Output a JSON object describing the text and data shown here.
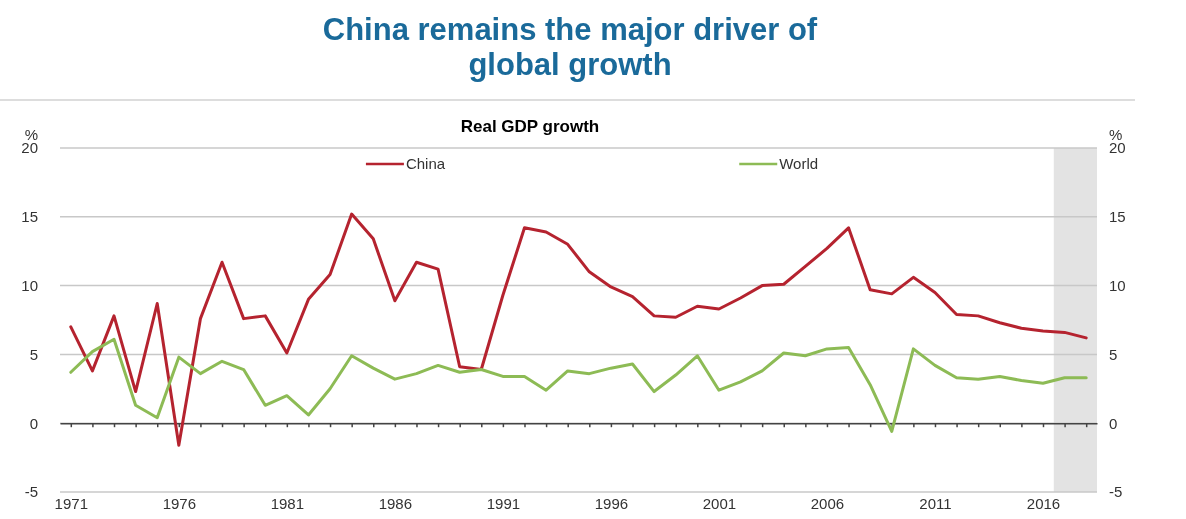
{
  "chart_data": {
    "type": "line",
    "title": "China remains the major driver of global growth",
    "subtitle": "Real GDP growth",
    "ylabel": "%",
    "y2label": "%",
    "x": [
      1971,
      1972,
      1973,
      1974,
      1975,
      1976,
      1977,
      1978,
      1979,
      1980,
      1981,
      1982,
      1983,
      1984,
      1985,
      1986,
      1987,
      1988,
      1989,
      1990,
      1991,
      1992,
      1993,
      1994,
      1995,
      1996,
      1997,
      1998,
      1999,
      2000,
      2001,
      2002,
      2003,
      2004,
      2005,
      2006,
      2007,
      2008,
      2009,
      2010,
      2011,
      2012,
      2013,
      2014,
      2015,
      2016,
      2017,
      2018
    ],
    "series": [
      {
        "name": "China",
        "color": "#b5232f",
        "values": [
          7.0,
          3.8,
          7.8,
          2.3,
          8.7,
          -1.6,
          7.6,
          11.7,
          7.6,
          7.8,
          5.1,
          9.0,
          10.8,
          15.2,
          13.4,
          8.9,
          11.7,
          11.2,
          4.1,
          3.9,
          9.3,
          14.2,
          13.9,
          13.0,
          11.0,
          9.9,
          9.2,
          7.8,
          7.7,
          8.5,
          8.3,
          9.1,
          10.0,
          10.1,
          11.4,
          12.7,
          14.2,
          9.7,
          9.4,
          10.6,
          9.5,
          7.9,
          7.8,
          7.3,
          6.9,
          6.7,
          6.6,
          6.2
        ]
      },
      {
        "name": "World",
        "color": "#8dbb55",
        "values": [
          3.7,
          5.2,
          6.1,
          1.3,
          0.4,
          4.8,
          3.6,
          4.5,
          3.9,
          1.3,
          2.0,
          0.6,
          2.5,
          4.9,
          4.0,
          3.2,
          3.6,
          4.2,
          3.7,
          3.9,
          3.4,
          3.4,
          2.4,
          3.8,
          3.6,
          4.0,
          4.3,
          2.3,
          3.5,
          4.9,
          2.4,
          3.0,
          3.8,
          5.1,
          4.9,
          5.4,
          5.5,
          2.8,
          -0.6,
          5.4,
          4.2,
          3.3,
          3.2,
          3.4,
          3.1,
          2.9,
          3.3,
          3.3
        ]
      }
    ],
    "xlim": [
      1970.5,
      2018.5
    ],
    "xticks": [
      1971,
      {
        "value": 1972,
        "label": null
      },
      {
        "value": 1973,
        "label": null
      },
      {
        "value": 1974,
        "label": null
      },
      {
        "value": 1975,
        "label": null
      },
      1976,
      {
        "value": 1977,
        "label": null
      },
      {
        "value": 1978,
        "label": null
      },
      {
        "value": 1979,
        "label": null
      },
      {
        "value": 1980,
        "label": null
      },
      1981,
      {
        "value": 1982,
        "label": null
      },
      {
        "value": 1983,
        "label": null
      },
      {
        "value": 1984,
        "label": null
      },
      {
        "value": 1985,
        "label": null
      },
      1986,
      {
        "value": 1987,
        "label": null
      },
      {
        "value": 1988,
        "label": null
      },
      {
        "value": 1989,
        "label": null
      },
      {
        "value": 1990,
        "label": null
      },
      1991,
      {
        "value": 1992,
        "label": null
      },
      {
        "value": 1993,
        "label": null
      },
      {
        "value": 1994,
        "label": null
      },
      {
        "value": 1995,
        "label": null
      },
      1996,
      {
        "value": 1997,
        "label": null
      },
      {
        "value": 1998,
        "label": null
      },
      {
        "value": 1999,
        "label": null
      },
      {
        "value": 2000,
        "label": null
      },
      2001,
      {
        "value": 2002,
        "label": null
      },
      {
        "value": 2003,
        "label": null
      },
      {
        "value": 2004,
        "label": null
      },
      {
        "value": 2005,
        "label": null
      },
      2006,
      {
        "value": 2007,
        "label": null
      },
      {
        "value": 2008,
        "label": null
      },
      {
        "value": 2009,
        "label": null
      },
      {
        "value": 2010,
        "label": null
      },
      2011,
      {
        "value": 2012,
        "label": null
      },
      {
        "value": 2013,
        "label": null
      },
      {
        "value": 2014,
        "label": null
      },
      {
        "value": 2015,
        "label": null
      },
      2016,
      {
        "value": 2017,
        "label": null
      },
      {
        "value": 2018,
        "label": null
      }
    ],
    "ylim": [
      -5,
      20
    ],
    "yticks": [
      -5,
      0,
      5,
      10,
      15,
      20
    ],
    "y2lim": [
      -5,
      20
    ],
    "y2ticks": [
      -5,
      0,
      5,
      10,
      15,
      20
    ],
    "bands": [
      {
        "axis": "x",
        "from": 2016.5,
        "to": 2018.5,
        "color": "#e3e3e3"
      }
    ],
    "grid": "y",
    "legend": "top",
    "marker": "none",
    "line_style": "solid"
  }
}
